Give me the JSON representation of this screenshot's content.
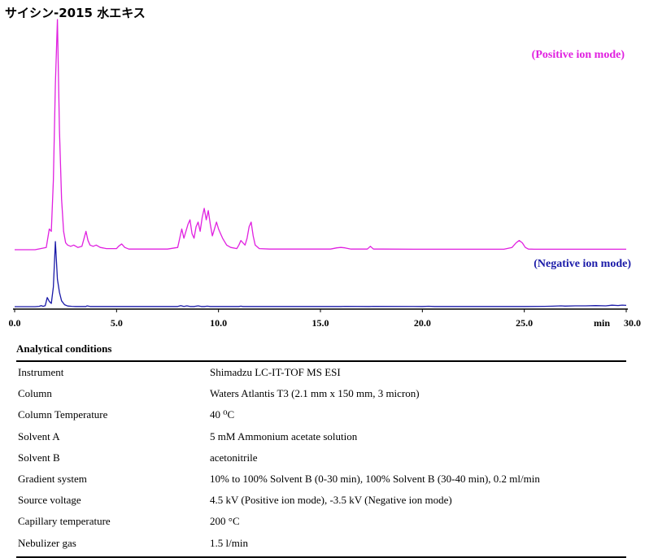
{
  "title": "サイシン-2015 水エキス",
  "colors": {
    "positive": "#e020e0",
    "negative": "#1a1aa8",
    "axis": "#000000"
  },
  "chart_data": {
    "type": "line",
    "title": "サイシン-2015 水エキス",
    "xlabel": "min",
    "xlim": [
      0,
      30
    ],
    "x_ticks": [
      0,
      5,
      10,
      15,
      20,
      25,
      30
    ],
    "x_tick_labels": [
      "0.0",
      "5.0",
      "10.0",
      "15.0",
      "20.0",
      "25.0",
      "30.0"
    ],
    "y_units": "relative intensity (0–100)",
    "series": [
      {
        "name": "(Positive ion mode)",
        "color": "#e020e0",
        "x": [
          0.0,
          1.0,
          1.55,
          1.7,
          1.8,
          1.9,
          2.0,
          2.1,
          2.2,
          2.3,
          2.4,
          2.5,
          2.6,
          2.75,
          2.9,
          3.1,
          3.3,
          3.5,
          3.6,
          3.7,
          3.85,
          4.0,
          4.2,
          4.5,
          5.0,
          5.1,
          5.25,
          5.4,
          5.6,
          6.5,
          7.5,
          8.0,
          8.1,
          8.2,
          8.3,
          8.4,
          8.5,
          8.6,
          8.7,
          8.8,
          8.9,
          9.0,
          9.1,
          9.2,
          9.3,
          9.4,
          9.5,
          9.6,
          9.7,
          9.8,
          9.9,
          10.0,
          10.1,
          10.2,
          10.4,
          10.6,
          10.9,
          11.0,
          11.1,
          11.2,
          11.3,
          11.4,
          11.5,
          11.6,
          11.7,
          11.8,
          12.0,
          12.5,
          13.0,
          14.0,
          15.0,
          15.5,
          15.8,
          16.0,
          16.2,
          16.5,
          17.3,
          17.45,
          17.6,
          18.0,
          20.0,
          22.0,
          24.0,
          24.4,
          24.6,
          24.75,
          24.9,
          25.05,
          25.2,
          25.5,
          27.0,
          30.0
        ],
        "values": [
          0,
          0,
          1,
          9,
          8,
          30,
          72,
          100,
          52,
          22,
          8,
          3,
          2,
          1.5,
          2,
          1,
          1.5,
          8,
          4,
          2,
          1.5,
          2,
          1,
          0.5,
          0.5,
          1.5,
          2.5,
          1,
          0.3,
          0.3,
          0.3,
          1,
          5,
          9,
          5,
          8,
          11,
          13,
          7,
          5,
          10,
          12,
          8,
          14,
          18,
          13,
          17,
          11,
          6,
          9,
          12,
          9,
          7,
          5,
          2,
          1,
          0.5,
          2,
          4,
          3,
          2,
          5,
          10,
          12,
          6,
          2,
          0.5,
          0.3,
          0.3,
          0.3,
          0.3,
          0.3,
          0.8,
          1,
          0.8,
          0.3,
          0.3,
          1.5,
          0.3,
          0.3,
          0.2,
          0.2,
          0.2,
          1,
          3,
          4,
          3,
          1,
          0.3,
          0.2,
          0.2,
          0.2
        ]
      },
      {
        "name": "(Negative ion mode)",
        "color": "#1a1aa8",
        "x": [
          0.0,
          1.0,
          1.2,
          1.3,
          1.4,
          1.5,
          1.6,
          1.7,
          1.8,
          1.9,
          2.0,
          2.1,
          2.2,
          2.3,
          2.45,
          2.6,
          2.8,
          3.0,
          3.5,
          3.55,
          3.7,
          4.5,
          7.0,
          8.0,
          8.15,
          8.3,
          8.45,
          8.6,
          8.8,
          9.0,
          9.15,
          9.3,
          9.45,
          9.6,
          10.0,
          11.0,
          11.1,
          11.2,
          12.0,
          16.0,
          16.2,
          17.4,
          17.6,
          20.0,
          20.3,
          20.6,
          24.0,
          25.0,
          26.0,
          26.4,
          26.8,
          27.0,
          27.5,
          28.0,
          28.5,
          29.0,
          29.3,
          29.6,
          29.8,
          30.0
        ],
        "values": [
          0,
          0,
          0.5,
          1.5,
          0.5,
          1.5,
          14,
          8,
          5,
          30,
          100,
          42,
          22,
          9,
          3,
          1,
          0.5,
          0.3,
          0.3,
          1.2,
          0.3,
          0.2,
          0.2,
          0.3,
          1.5,
          0.3,
          1.2,
          0.3,
          0.3,
          1.3,
          0.3,
          0.3,
          0.8,
          0.3,
          0.3,
          0.3,
          0.8,
          0.3,
          0.2,
          0.2,
          0.5,
          0.2,
          0.5,
          0.2,
          0.6,
          0.2,
          0.2,
          0.3,
          0.5,
          0.8,
          1.2,
          0.9,
          1.2,
          1.2,
          1.6,
          1.3,
          2.2,
          1.8,
          2.4,
          2
        ]
      }
    ]
  },
  "conditions": {
    "heading": "Analytical conditions",
    "rows": [
      {
        "name": "Instrument",
        "value": "Shimadzu LC-IT-TOF MS ESI"
      },
      {
        "name": "Column",
        "value": "Waters Atlantis T3 (2.1 mm x 150 mm, 3 micron)"
      },
      {
        "name": "Column Temperature",
        "value": "40 ⁰C"
      },
      {
        "name": "Solvent A",
        "value": "5 mM Ammonium acetate solution"
      },
      {
        "name": "Solvent B",
        "value": "acetonitrile"
      },
      {
        "name": "Gradient system",
        "value": "10% to 100% Solvent B (0-30 min), 100% Solvent B (30-40 min), 0.2 ml/min"
      },
      {
        "name": "Source voltage",
        "value": "4.5 kV (Positive ion mode), -3.5 kV (Negative ion mode)"
      },
      {
        "name": "Capillary temperature",
        "value": "200 °C"
      },
      {
        "name": "Nebulizer gas",
        "value": "1.5 l/min"
      }
    ]
  }
}
